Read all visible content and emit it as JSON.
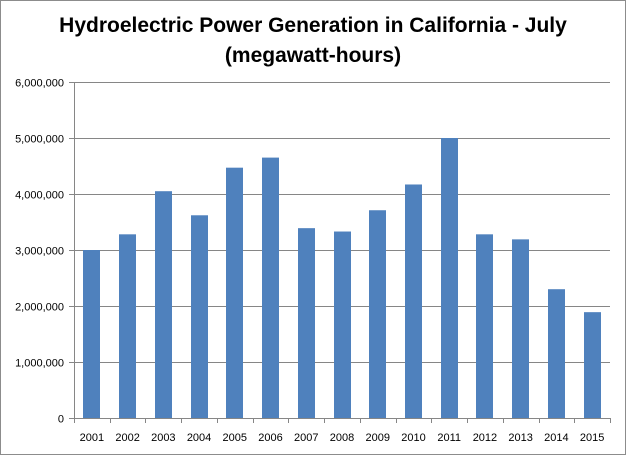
{
  "chart_data": {
    "type": "bar",
    "title": "Hydroelectric Power Generation in California - July",
    "subtitle": "(megawatt-hours)",
    "xlabel": "",
    "ylabel": "",
    "categories": [
      "2001",
      "2002",
      "2003",
      "2004",
      "2005",
      "2006",
      "2007",
      "2008",
      "2009",
      "2010",
      "2011",
      "2012",
      "2013",
      "2014",
      "2015"
    ],
    "values": [
      3000000,
      3280000,
      4050000,
      3620000,
      4470000,
      4650000,
      3390000,
      3330000,
      3710000,
      4170000,
      5000000,
      3280000,
      3190000,
      2300000,
      1890000
    ],
    "ylim": [
      0,
      6000000
    ],
    "yticks": [
      0,
      1000000,
      2000000,
      3000000,
      4000000,
      5000000,
      6000000
    ],
    "ytick_labels": [
      "0",
      "1,000,000",
      "2,000,000",
      "3,000,000",
      "4,000,000",
      "5,000,000",
      "6,000,000"
    ],
    "grid": true,
    "legend": "none",
    "colors": {
      "bar": "#4f81bd",
      "grid": "#868686",
      "axis": "#868686"
    }
  }
}
